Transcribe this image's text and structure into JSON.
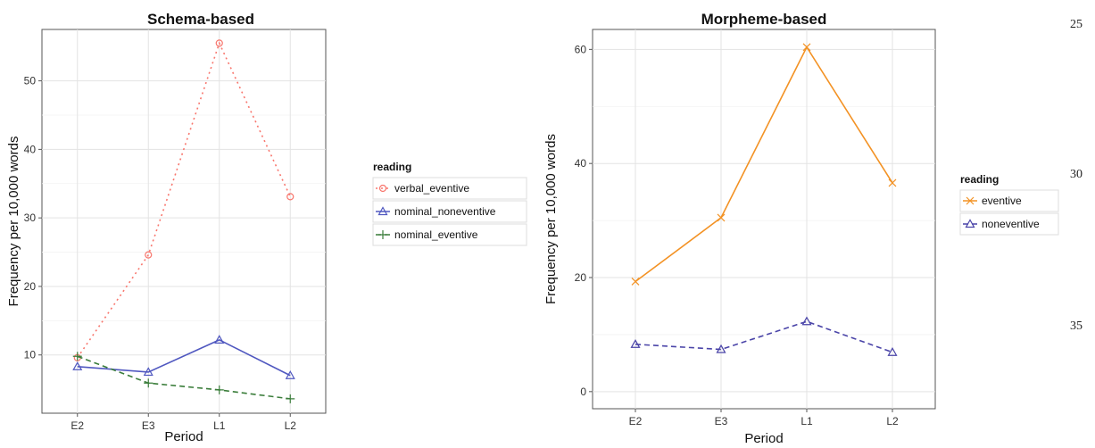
{
  "margin_numbers": [
    "25",
    "30",
    "35"
  ],
  "chart_data": [
    {
      "type": "line",
      "title": "Schema-based",
      "xlabel": "Period",
      "ylabel": "Frequency per 10,000 words",
      "categories": [
        "E2",
        "E3",
        "L1",
        "L2"
      ],
      "ylim": [
        1.5,
        57.5
      ],
      "yticks": [
        10,
        20,
        30,
        40,
        50
      ],
      "grid": true,
      "legend_placement": "right",
      "legend_title": "reading",
      "series": [
        {
          "name": "verbal_eventive",
          "values": [
            9.6,
            24.6,
            55.5,
            33.1
          ],
          "color": "#F8766D",
          "line": "dotted",
          "marker": "circle"
        },
        {
          "name": "nominal_noneventive",
          "values": [
            8.3,
            7.5,
            12.2,
            7.0
          ],
          "color": "#5058C0",
          "line": "solid",
          "marker": "triangle"
        },
        {
          "name": "nominal_eventive",
          "values": [
            9.8,
            5.9,
            4.9,
            3.6
          ],
          "color": "#3A7D3A",
          "line": "dashed",
          "marker": "plus"
        }
      ]
    },
    {
      "type": "line",
      "title": "Morpheme-based",
      "xlabel": "Period",
      "ylabel": "Frequency per 10,000 words",
      "categories": [
        "E2",
        "E3",
        "L1",
        "L2"
      ],
      "ylim": [
        -3,
        63.5
      ],
      "yticks": [
        0,
        20,
        40,
        60
      ],
      "grid": true,
      "legend_placement": "right",
      "legend_title": "reading",
      "series": [
        {
          "name": "eventive",
          "values": [
            19.3,
            30.5,
            60.4,
            36.6
          ],
          "color": "#F39224",
          "line": "solid",
          "marker": "x"
        },
        {
          "name": "noneventive",
          "values": [
            8.3,
            7.4,
            12.3,
            6.9
          ],
          "color": "#4A44A8",
          "line": "dashed",
          "marker": "triangle"
        }
      ]
    }
  ]
}
